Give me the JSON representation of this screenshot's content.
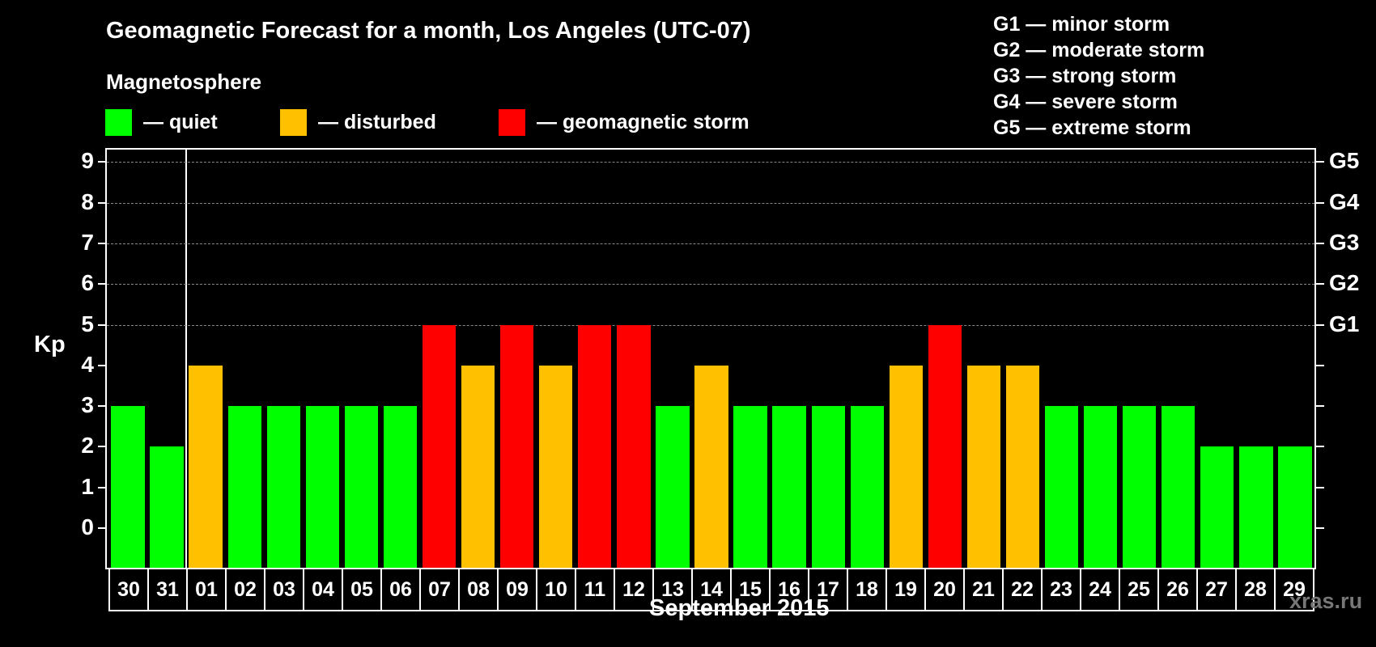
{
  "header": {
    "title": "Geomagnetic Forecast for a month, Los Angeles (UTC-07)",
    "section": "Magnetosphere"
  },
  "legend": [
    {
      "label": "— quiet",
      "color": "#00ff00"
    },
    {
      "label": "— disturbed",
      "color": "#ffc000"
    },
    {
      "label": "— geomagnetic storm",
      "color": "#ff0000"
    }
  ],
  "storm_scale": [
    "G1 — minor storm",
    "G2 — moderate storm",
    "G3 — strong storm",
    "G4 — severe storm",
    "G5 — extreme storm"
  ],
  "axes": {
    "ylabel": "Kp",
    "xlabel": "September 2015",
    "yticks": [
      "0",
      "1",
      "2",
      "3",
      "4",
      "5",
      "6",
      "7",
      "8",
      "9"
    ],
    "right_labels": [
      {
        "y": 5,
        "label": "G1"
      },
      {
        "y": 6,
        "label": "G2"
      },
      {
        "y": 7,
        "label": "G3"
      },
      {
        "y": 8,
        "label": "G4"
      },
      {
        "y": 9,
        "label": "G5"
      }
    ]
  },
  "watermark": "xras.ru",
  "chart_data": {
    "type": "bar",
    "title": "Geomagnetic Forecast for a month, Los Angeles (UTC-07)",
    "xlabel": "September 2015",
    "ylabel": "Kp",
    "ylim": [
      0,
      9
    ],
    "grid": "dashed horizontal at 5-9",
    "categories": [
      "30",
      "31",
      "01",
      "02",
      "03",
      "04",
      "05",
      "06",
      "07",
      "08",
      "09",
      "10",
      "11",
      "12",
      "13",
      "14",
      "15",
      "16",
      "17",
      "18",
      "19",
      "20",
      "21",
      "22",
      "23",
      "24",
      "25",
      "26",
      "27",
      "28",
      "29"
    ],
    "values": [
      3,
      2,
      4,
      3,
      3,
      3,
      3,
      3,
      5,
      4,
      5,
      4,
      5,
      5,
      3,
      4,
      3,
      3,
      3,
      3,
      4,
      5,
      4,
      4,
      3,
      3,
      3,
      3,
      2,
      2,
      2
    ],
    "status": [
      "quiet",
      "quiet",
      "disturbed",
      "quiet",
      "quiet",
      "quiet",
      "quiet",
      "quiet",
      "storm",
      "disturbed",
      "storm",
      "disturbed",
      "storm",
      "storm",
      "quiet",
      "disturbed",
      "quiet",
      "quiet",
      "quiet",
      "quiet",
      "disturbed",
      "storm",
      "disturbed",
      "disturbed",
      "quiet",
      "quiet",
      "quiet",
      "quiet",
      "quiet",
      "quiet",
      "quiet"
    ],
    "colors": {
      "quiet": "#00ff00",
      "disturbed": "#ffc000",
      "storm": "#ff0000"
    }
  }
}
